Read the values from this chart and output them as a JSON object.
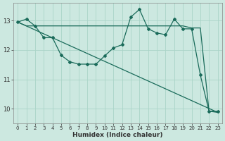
{
  "bg_color": "#cce8e0",
  "grid_color": "#aad4c8",
  "line_color": "#1a6b5a",
  "xlabel": "Humidex (Indice chaleur)",
  "xlim": [
    -0.5,
    23.5
  ],
  "ylim": [
    9.5,
    13.6
  ],
  "yticks": [
    10,
    11,
    12,
    13
  ],
  "xticks": [
    0,
    1,
    2,
    3,
    4,
    5,
    6,
    7,
    8,
    9,
    10,
    11,
    12,
    13,
    14,
    15,
    16,
    17,
    18,
    19,
    20,
    21,
    22,
    23
  ],
  "line1_x": [
    0,
    1,
    2,
    3,
    4,
    5,
    6,
    7,
    8,
    9,
    10,
    11,
    12,
    13,
    14,
    15,
    16,
    17,
    18,
    19,
    20,
    21,
    22,
    23
  ],
  "line1_y": [
    12.95,
    13.05,
    12.82,
    12.42,
    12.42,
    11.82,
    11.6,
    11.52,
    11.52,
    11.52,
    11.8,
    12.07,
    12.18,
    13.12,
    13.38,
    12.72,
    12.58,
    12.52,
    13.05,
    12.72,
    12.72,
    11.15,
    9.92,
    9.92
  ],
  "line2_x": [
    0,
    1,
    2,
    3,
    4,
    5,
    6,
    7,
    8,
    9,
    10,
    11,
    12,
    13,
    14,
    15,
    16,
    17,
    18,
    19,
    20,
    21,
    22,
    23
  ],
  "line2_y": [
    12.95,
    12.82,
    12.82,
    12.82,
    12.82,
    12.82,
    12.82,
    12.82,
    12.82,
    12.82,
    12.82,
    12.82,
    12.82,
    12.82,
    12.82,
    12.82,
    12.82,
    12.82,
    12.82,
    12.82,
    12.75,
    12.75,
    9.92,
    9.88
  ],
  "line3_x": [
    0,
    23
  ],
  "line3_y": [
    12.95,
    9.88
  ]
}
